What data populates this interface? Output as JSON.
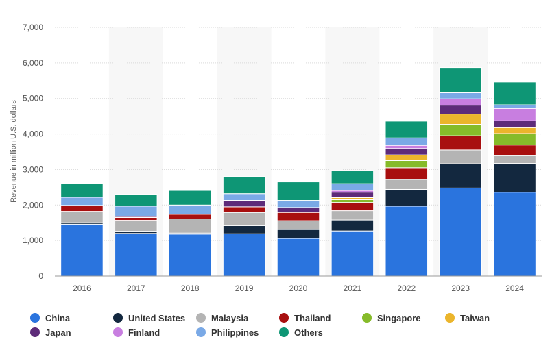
{
  "chart_data": {
    "type": "bar",
    "stacked": true,
    "title": "",
    "xlabel": "",
    "ylabel": "Revenue in million U.S. dollars",
    "ylim": [
      0,
      7000
    ],
    "yticks": [
      0,
      1000,
      2000,
      3000,
      4000,
      5000,
      6000,
      7000
    ],
    "ytick_labels": [
      "0",
      "1,000",
      "2,000",
      "3,000",
      "4,000",
      "5,000",
      "6,000",
      "7,000"
    ],
    "grid": true,
    "legend_position": "bottom",
    "categories": [
      "2016",
      "2017",
      "2018",
      "2019",
      "2020",
      "2021",
      "2022",
      "2023",
      "2024"
    ],
    "series": [
      {
        "name": "China",
        "color": "#2a74de",
        "values": [
          1460,
          1200,
          1180,
          1190,
          1060,
          1270,
          1970,
          2480,
          2360
        ]
      },
      {
        "name": "United States",
        "color": "#13283f",
        "values": [
          40,
          60,
          30,
          230,
          250,
          310,
          470,
          680,
          810
        ]
      },
      {
        "name": "Malaysia",
        "color": "#b4b4b4",
        "values": [
          320,
          310,
          400,
          370,
          250,
          260,
          280,
          390,
          220
        ]
      },
      {
        "name": "Thailand",
        "color": "#a80f0f",
        "values": [
          170,
          80,
          130,
          160,
          230,
          230,
          330,
          400,
          300
        ]
      },
      {
        "name": "Singapore",
        "color": "#86bb2a",
        "values": [
          0,
          0,
          0,
          0,
          0,
          80,
          200,
          320,
          320
        ]
      },
      {
        "name": "Taiwan",
        "color": "#ebb52c",
        "values": [
          0,
          0,
          0,
          0,
          0,
          60,
          160,
          290,
          170
        ]
      },
      {
        "name": "Japan",
        "color": "#5d2b79",
        "values": [
          0,
          30,
          0,
          180,
          140,
          150,
          180,
          250,
          190
        ]
      },
      {
        "name": "Finland",
        "color": "#c87ee0",
        "values": [
          0,
          0,
          0,
          0,
          0,
          50,
          90,
          180,
          350
        ]
      },
      {
        "name": "Philippines",
        "color": "#7aa9e6",
        "values": [
          230,
          290,
          260,
          190,
          200,
          190,
          210,
          170,
          100
        ]
      },
      {
        "name": "Others",
        "color": "#0e9675",
        "values": [
          380,
          330,
          410,
          480,
          520,
          370,
          470,
          710,
          640
        ]
      }
    ]
  }
}
